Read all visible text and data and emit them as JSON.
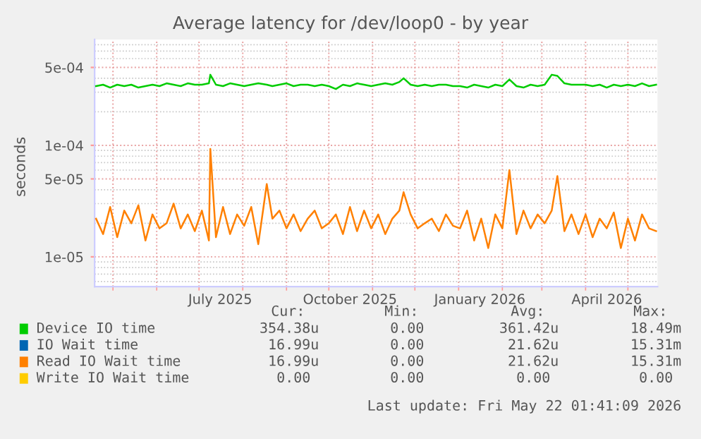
{
  "chart_data": {
    "type": "line",
    "title": "Average latency for /dev/loop0 - by year",
    "ylabel": "seconds",
    "log": "y",
    "grid": true,
    "legend": "bottom",
    "ylim": [
      5.4e-06,
      0.00089
    ],
    "yticks": [
      {
        "value": 6e-06,
        "label": null
      },
      {
        "value": 7e-06,
        "label": null
      },
      {
        "value": 8e-06,
        "label": null
      },
      {
        "value": 9e-06,
        "label": null
      },
      {
        "value": 1e-05,
        "label": "1e-05"
      },
      {
        "value": 2e-05,
        "label": null
      },
      {
        "value": 3e-05,
        "label": null
      },
      {
        "value": 4e-05,
        "label": null
      },
      {
        "value": 5e-05,
        "label": "5e-05"
      },
      {
        "value": 6e-05,
        "label": null
      },
      {
        "value": 7e-05,
        "label": null
      },
      {
        "value": 8e-05,
        "label": null
      },
      {
        "value": 9e-05,
        "label": null
      },
      {
        "value": 0.0001,
        "label": "1e-04"
      },
      {
        "value": 0.0002,
        "label": null
      },
      {
        "value": 0.0003,
        "label": null
      },
      {
        "value": 0.0004,
        "label": null
      },
      {
        "value": 0.0005,
        "label": "5e-04"
      },
      {
        "value": 0.0006,
        "label": null
      },
      {
        "value": 0.0007,
        "label": null
      },
      {
        "value": 0.0008,
        "label": null
      }
    ],
    "xlim": [
      "2025-04-18",
      "2026-05-22"
    ],
    "xticks": [
      {
        "value": "2025-05-01",
        "label": null
      },
      {
        "value": "2025-06-01",
        "label": null
      },
      {
        "value": "2025-07-01",
        "label": null
      },
      {
        "value": "2025-07-16",
        "label": "July 2025"
      },
      {
        "value": "2025-08-01",
        "label": null
      },
      {
        "value": "2025-09-01",
        "label": null
      },
      {
        "value": "2025-10-01",
        "label": null
      },
      {
        "value": "2025-10-16",
        "label": "October 2025"
      },
      {
        "value": "2025-11-01",
        "label": null
      },
      {
        "value": "2025-12-01",
        "label": null
      },
      {
        "value": "2026-01-01",
        "label": null
      },
      {
        "value": "2026-01-16",
        "label": "January 2026"
      },
      {
        "value": "2026-02-01",
        "label": null
      },
      {
        "value": "2026-03-01",
        "label": null
      },
      {
        "value": "2026-04-01",
        "label": null
      },
      {
        "value": "2026-04-16",
        "label": "April 2026"
      },
      {
        "value": "2026-05-01",
        "label": null
      }
    ],
    "x": [
      "2025-04-19",
      "2025-04-24",
      "2025-04-29",
      "2025-05-04",
      "2025-05-09",
      "2025-05-14",
      "2025-05-19",
      "2025-05-24",
      "2025-05-29",
      "2025-06-03",
      "2025-06-08",
      "2025-06-13",
      "2025-06-18",
      "2025-06-23",
      "2025-06-28",
      "2025-07-03",
      "2025-07-08",
      "2025-07-09",
      "2025-07-13",
      "2025-07-18",
      "2025-07-23",
      "2025-07-28",
      "2025-08-02",
      "2025-08-07",
      "2025-08-12",
      "2025-08-18",
      "2025-08-22",
      "2025-08-27",
      "2025-09-01",
      "2025-09-06",
      "2025-09-11",
      "2025-09-16",
      "2025-09-21",
      "2025-09-26",
      "2025-10-01",
      "2025-10-06",
      "2025-10-11",
      "2025-10-16",
      "2025-10-21",
      "2025-10-26",
      "2025-10-31",
      "2025-11-05",
      "2025-11-10",
      "2025-11-15",
      "2025-11-20",
      "2025-11-23",
      "2025-11-28",
      "2025-12-03",
      "2025-12-08",
      "2025-12-13",
      "2025-12-18",
      "2025-12-23",
      "2025-12-28",
      "2026-01-02",
      "2026-01-07",
      "2026-01-12",
      "2026-01-17",
      "2026-01-22",
      "2026-01-27",
      "2026-02-01",
      "2026-02-06",
      "2026-02-11",
      "2026-02-16",
      "2026-02-21",
      "2026-02-26",
      "2026-03-03",
      "2026-03-08",
      "2026-03-12",
      "2026-03-17",
      "2026-03-22",
      "2026-03-27",
      "2026-04-01",
      "2026-04-06",
      "2026-04-11",
      "2026-04-16",
      "2026-04-21",
      "2026-04-26",
      "2026-05-01",
      "2026-05-06",
      "2026-05-11",
      "2026-05-16",
      "2026-05-21"
    ],
    "series": [
      {
        "name": "Device IO time",
        "color": "#00cc00",
        "values": [
          0.00034,
          0.00035,
          0.00033,
          0.00035,
          0.00034,
          0.00035,
          0.00033,
          0.00034,
          0.00035,
          0.00034,
          0.00036,
          0.00035,
          0.00034,
          0.00036,
          0.00035,
          0.00035,
          0.00036,
          0.00043,
          0.00035,
          0.00034,
          0.00036,
          0.00035,
          0.00034,
          0.00035,
          0.00036,
          0.00035,
          0.00034,
          0.00035,
          0.00036,
          0.00034,
          0.00035,
          0.00035,
          0.00034,
          0.00035,
          0.00034,
          0.00032,
          0.00035,
          0.00034,
          0.00036,
          0.00035,
          0.00034,
          0.00035,
          0.00036,
          0.00035,
          0.00037,
          0.0004,
          0.00035,
          0.00034,
          0.00035,
          0.00034,
          0.00035,
          0.00035,
          0.00034,
          0.00034,
          0.00033,
          0.00035,
          0.00034,
          0.00033,
          0.00035,
          0.00034,
          0.00039,
          0.00034,
          0.00033,
          0.00035,
          0.00034,
          0.00035,
          0.00043,
          0.00042,
          0.00036,
          0.00035,
          0.00035,
          0.00035,
          0.00034,
          0.00035,
          0.00033,
          0.00035,
          0.00034,
          0.00035,
          0.00034,
          0.00036,
          0.00034,
          0.00035
        ]
      },
      {
        "name": "IO Wait time",
        "color": "#0066b3",
        "values": [
          null,
          null,
          null,
          null,
          null,
          null,
          null,
          null,
          null,
          null,
          null,
          null,
          null,
          null,
          null,
          null,
          null,
          null,
          null,
          null,
          null,
          null,
          null,
          null,
          null,
          null,
          null,
          null,
          null,
          null,
          null,
          null,
          null,
          null,
          null,
          null,
          null,
          null,
          null,
          null,
          null,
          null,
          null,
          null,
          null,
          null,
          null,
          null,
          null,
          null,
          null,
          null,
          null,
          null,
          null,
          null,
          null,
          null,
          null,
          null,
          null,
          null,
          null,
          null,
          null,
          null,
          null,
          null,
          null,
          null,
          null,
          null,
          null,
          null,
          null,
          null,
          null,
          null,
          null,
          null,
          null,
          null
        ]
      },
      {
        "name": "Read IO Wait time",
        "color": "#ff8000",
        "values": [
          2.2e-05,
          1.6e-05,
          2.8e-05,
          1.5e-05,
          2.6e-05,
          2e-05,
          2.9e-05,
          1.4e-05,
          2.4e-05,
          1.8e-05,
          2e-05,
          3e-05,
          1.8e-05,
          2.4e-05,
          1.7e-05,
          2.6e-05,
          1.4e-05,
          9.3e-05,
          1.5e-05,
          2.8e-05,
          1.6e-05,
          2.4e-05,
          1.9e-05,
          2.8e-05,
          1.3e-05,
          4.5e-05,
          2.2e-05,
          2.6e-05,
          1.8e-05,
          2.4e-05,
          1.7e-05,
          2.2e-05,
          2.6e-05,
          1.8e-05,
          2e-05,
          2.4e-05,
          1.6e-05,
          2.8e-05,
          1.7e-05,
          2.6e-05,
          1.8e-05,
          2.4e-05,
          1.6e-05,
          2.2e-05,
          2.6e-05,
          3.8e-05,
          2.4e-05,
          1.8e-05,
          2e-05,
          2.2e-05,
          1.7e-05,
          2.4e-05,
          1.9e-05,
          1.8e-05,
          2.6e-05,
          1.4e-05,
          2.2e-05,
          1.2e-05,
          2.4e-05,
          1.8e-05,
          6e-05,
          1.6e-05,
          2.6e-05,
          1.8e-05,
          2.4e-05,
          2e-05,
          2.6e-05,
          5.3e-05,
          1.7e-05,
          2.4e-05,
          1.6e-05,
          2.4e-05,
          1.5e-05,
          2.2e-05,
          1.8e-05,
          2.5e-05,
          1.2e-05,
          2.2e-05,
          1.4e-05,
          2.4e-05,
          1.8e-05,
          1.7e-05
        ]
      },
      {
        "name": "Write IO Wait time",
        "color": "#ffcc00",
        "values": [
          null,
          null,
          null,
          null,
          null,
          null,
          null,
          null,
          null,
          null,
          null,
          null,
          null,
          null,
          null,
          null,
          null,
          null,
          null,
          null,
          null,
          null,
          null,
          null,
          null,
          null,
          null,
          null,
          null,
          null,
          null,
          null,
          null,
          null,
          null,
          null,
          null,
          null,
          null,
          null,
          null,
          null,
          null,
          null,
          null,
          null,
          null,
          null,
          null,
          null,
          null,
          null,
          null,
          null,
          null,
          null,
          null,
          null,
          null,
          null,
          null,
          null,
          null,
          null,
          null,
          null,
          null,
          null,
          null,
          null,
          null,
          null,
          null,
          null,
          null,
          null,
          null,
          null,
          null,
          null,
          null,
          null
        ]
      }
    ],
    "annotations": [
      "Cur:",
      "Min:",
      "Avg:",
      "Max:",
      "354.38u",
      "0.00",
      "361.42u",
      "18.49m",
      "16.99u",
      "0.00",
      "21.62u",
      "15.31m",
      "16.99u",
      "0.00",
      "21.62u",
      "15.31m",
      "0.00",
      "0.00",
      "0.00",
      "0.00",
      "Last update: Fri May 22 01:41:09 2026"
    ]
  }
}
